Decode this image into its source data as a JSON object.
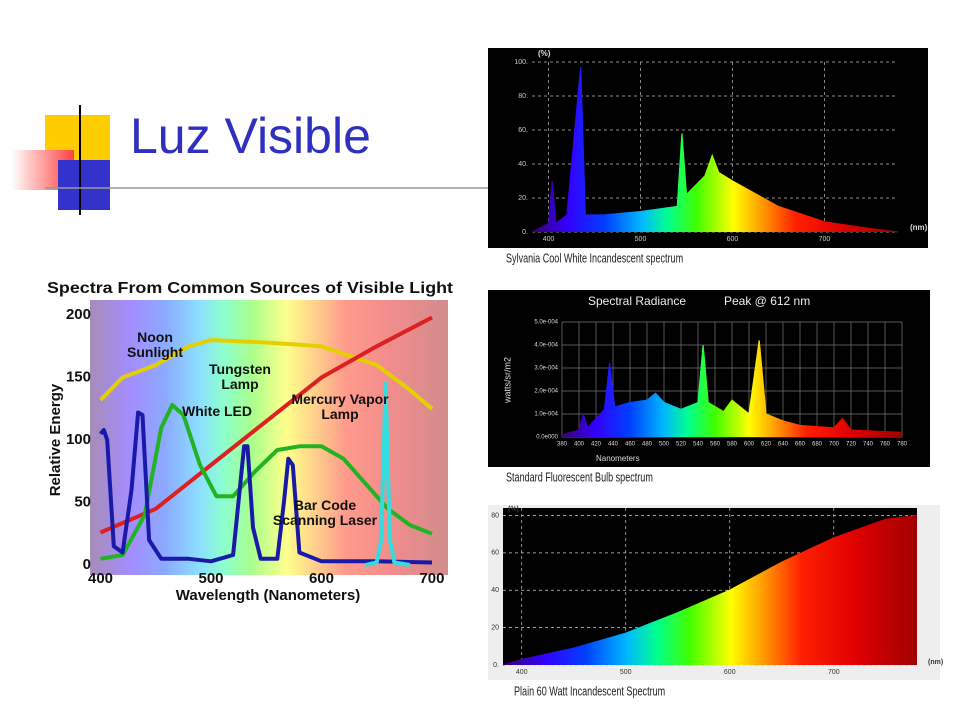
{
  "header": {
    "title": "Luz Visible"
  },
  "chart_data": [
    {
      "type": "line",
      "title": "Spectra From Common Sources of Visible Light",
      "xlabel": "Wavelength (Nanometers)",
      "ylabel": "Relative Energy",
      "xlim": [
        395,
        710
      ],
      "ylim": [
        0,
        200
      ],
      "xticks": [
        400,
        500,
        600,
        700
      ],
      "yticks": [
        0,
        50,
        100,
        150,
        200
      ],
      "grid": false,
      "series": [
        {
          "name": "Noon Sunlight",
          "color": "#e6cf00",
          "x": [
            400,
            420,
            450,
            480,
            500,
            550,
            600,
            650,
            680,
            700
          ],
          "values": [
            132,
            150,
            160,
            175,
            180,
            178,
            175,
            160,
            140,
            125
          ]
        },
        {
          "name": "Tungsten Lamp",
          "color": "#dd2020",
          "x": [
            400,
            450,
            500,
            550,
            600,
            650,
            700
          ],
          "values": [
            26,
            45,
            80,
            115,
            150,
            175,
            198
          ]
        },
        {
          "name": "White LED",
          "color": "#22b322",
          "x": [
            400,
            420,
            440,
            455,
            465,
            475,
            490,
            505,
            520,
            540,
            560,
            580,
            600,
            620,
            640,
            660,
            680,
            700
          ],
          "values": [
            5,
            8,
            40,
            110,
            128,
            120,
            80,
            55,
            55,
            75,
            92,
            95,
            95,
            85,
            65,
            45,
            32,
            25
          ]
        },
        {
          "name": "Mercury Vapor Lamp",
          "color": "#1a1aa8",
          "x": [
            400,
            403,
            406,
            412,
            420,
            428,
            434,
            438,
            444,
            455,
            480,
            500,
            520,
            526,
            530,
            533,
            538,
            545,
            560,
            566,
            570,
            574,
            580,
            600,
            650,
            700
          ],
          "values": [
            105,
            108,
            100,
            15,
            10,
            60,
            122,
            120,
            20,
            5,
            5,
            3,
            8,
            60,
            95,
            95,
            30,
            5,
            5,
            50,
            85,
            80,
            10,
            3,
            3,
            2
          ]
        },
        {
          "name": "Bar Code Scanning Laser",
          "color": "#33dddd",
          "x": [
            640,
            650,
            654,
            656,
            658,
            660,
            662,
            666,
            680
          ],
          "values": [
            0,
            2,
            20,
            80,
            145,
            80,
            20,
            2,
            0
          ]
        }
      ]
    },
    {
      "type": "area",
      "caption": "Sylvania Cool White Incandescent spectrum",
      "xlabel": "(nm)",
      "ylabel": "(%)",
      "xlim": [
        382,
        780
      ],
      "ylim": [
        0,
        100
      ],
      "xticks": [
        400,
        500,
        600,
        700
      ],
      "yticks": [
        {
          "value": 0,
          "label": "0."
        },
        {
          "value": 20,
          "label": "20."
        },
        {
          "value": 40,
          "label": "40."
        },
        {
          "value": 60,
          "label": "60."
        },
        {
          "value": 80,
          "label": "80."
        },
        {
          "value": 100,
          "label": "100."
        }
      ],
      "grid": true,
      "x": [
        382,
        400,
        404,
        408,
        420,
        435,
        440,
        460,
        500,
        540,
        545,
        550,
        570,
        578,
        585,
        600,
        650,
        700,
        750,
        780
      ],
      "series": [
        {
          "values": [
            0,
            5,
            30,
            5,
            10,
            97,
            10,
            10,
            12,
            15,
            58,
            22,
            33,
            45,
            35,
            30,
            15,
            6,
            2,
            0
          ]
        }
      ]
    },
    {
      "type": "area",
      "title": "Spectral Radiance",
      "annotation": "Peak @ 612 nm",
      "caption": "Standard Fluorescent Bulb spectrum",
      "xlabel": "Nanometers",
      "ylabel": "watts/sr/m2",
      "xlim": [
        380,
        780
      ],
      "ylim": [
        0,
        0.0005
      ],
      "xticks": [
        380,
        400,
        420,
        440,
        460,
        480,
        500,
        520,
        540,
        560,
        580,
        600,
        620,
        640,
        660,
        680,
        700,
        720,
        740,
        760,
        780
      ],
      "yticks": [
        {
          "value": 0,
          "label": "0.0e000"
        },
        {
          "value": 0.0001,
          "label": "1.0e-004"
        },
        {
          "value": 0.0002,
          "label": "2.0e-004"
        },
        {
          "value": 0.0003,
          "label": "3.0e-004"
        },
        {
          "value": 0.0004,
          "label": "4.0e-004"
        },
        {
          "value": 0.0005,
          "label": "5.0e-004"
        }
      ],
      "grid": true,
      "x": [
        380,
        400,
        405,
        410,
        430,
        436,
        442,
        460,
        480,
        490,
        500,
        520,
        540,
        546,
        552,
        570,
        580,
        590,
        600,
        612,
        620,
        640,
        660,
        700,
        710,
        720,
        780
      ],
      "series": [
        {
          "values": [
            1e-05,
            3e-05,
            0.0001,
            4e-05,
            0.00012,
            0.00032,
            0.00013,
            0.00015,
            0.00016,
            0.00019,
            0.00015,
            0.00012,
            0.00015,
            0.0004,
            0.00015,
            0.00011,
            0.00016,
            0.00013,
            0.0001,
            0.00042,
            0.0001,
            7e-05,
            5e-05,
            4e-05,
            8e-05,
            3e-05,
            2e-05
          ]
        }
      ]
    },
    {
      "type": "area",
      "caption": "Plain 60 Watt Incandescent Spectrum",
      "xlabel": "(nm)",
      "ylabel": "(%)",
      "xlim": [
        382,
        780
      ],
      "ylim": [
        0,
        84
      ],
      "xticks": [
        400,
        500,
        600,
        700
      ],
      "yticks": [
        {
          "value": 0,
          "label": "0."
        },
        20,
        40,
        60,
        80
      ],
      "grid": true,
      "x": [
        382,
        400,
        450,
        500,
        550,
        600,
        650,
        700,
        750,
        780
      ],
      "series": [
        {
          "values": [
            0,
            3,
            9,
            17,
            28,
            40,
            55,
            68,
            78,
            80
          ]
        }
      ]
    }
  ]
}
